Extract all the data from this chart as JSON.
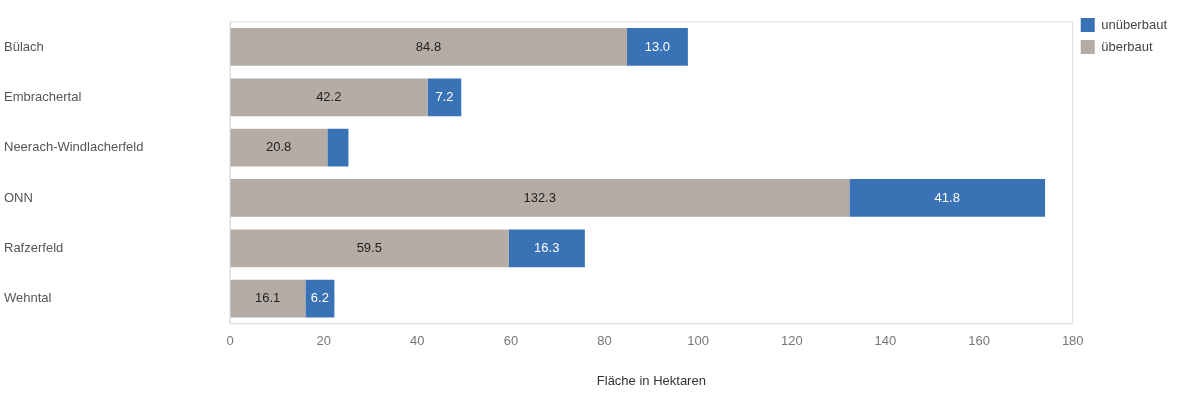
{
  "chart_data": {
    "type": "bar",
    "orientation": "horizontal",
    "stacked": true,
    "xlabel": "Fläche in Hektaren",
    "categories": [
      "Bülach",
      "Embrachertal",
      "Neerach-Windlacherfeld",
      "ONN",
      "Rafzerfeld",
      "Wehntal"
    ],
    "series": [
      {
        "name": "überbaut",
        "color": "#b5aca6",
        "values": [
          84.8,
          42.2,
          20.8,
          132.3,
          59.5,
          16.1
        ],
        "value_labels": [
          "84.8",
          "42.2",
          "20.8",
          "132.3",
          "59.5",
          "16.1"
        ]
      },
      {
        "name": "unüberbaut",
        "color": "#3a73b5",
        "values": [
          13.0,
          7.2,
          4.5,
          41.8,
          16.3,
          6.2
        ],
        "value_labels": [
          "13.0",
          "7.2",
          null,
          "41.8",
          "16.3",
          "6.2"
        ]
      }
    ],
    "xlim": [
      0,
      180
    ],
    "xticks": [
      0,
      20,
      40,
      60,
      80,
      100,
      120,
      140,
      160,
      180
    ],
    "grid": false,
    "legend": "top right"
  }
}
